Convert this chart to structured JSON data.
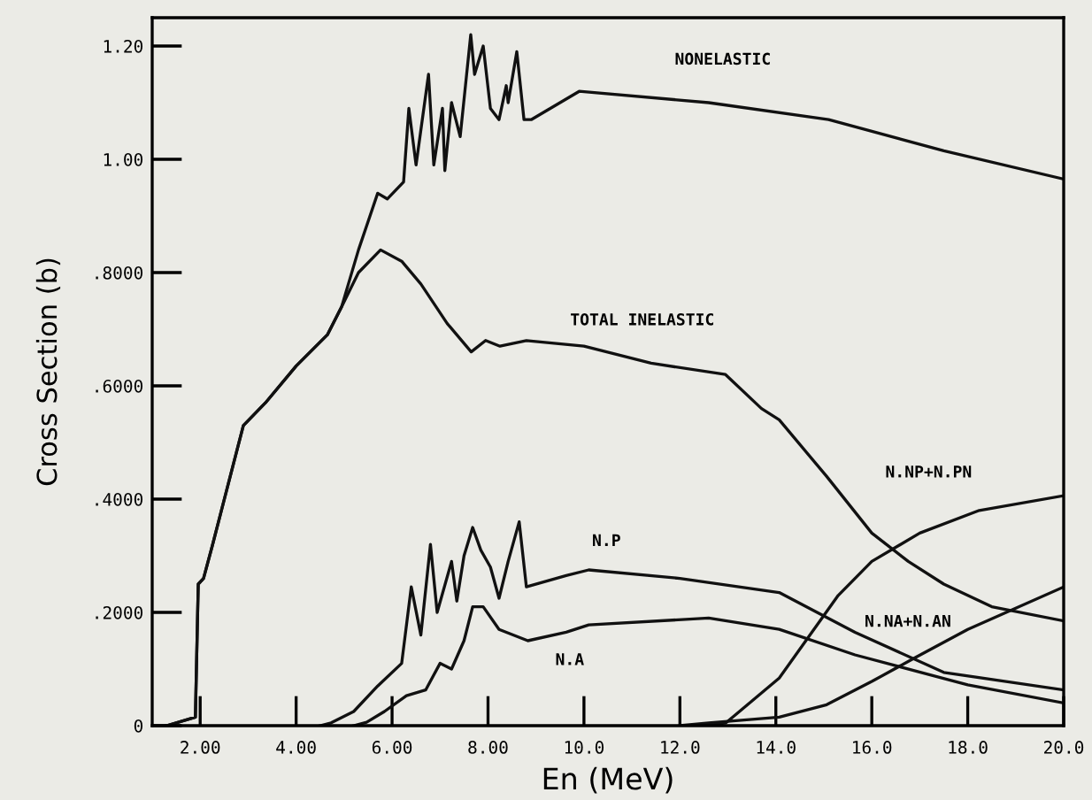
{
  "chart_data": {
    "type": "line",
    "xlabel": "En (MeV)",
    "ylabel": "Cross Section (b)",
    "xlim": [
      1,
      20
    ],
    "ylim": [
      0,
      1.25
    ],
    "xticks": [
      {
        "value": 2,
        "label": "2.00"
      },
      {
        "value": 4,
        "label": "4.00"
      },
      {
        "value": 6,
        "label": "6.00"
      },
      {
        "value": 8,
        "label": "8.00"
      },
      {
        "value": 10,
        "label": "10.0"
      },
      {
        "value": 12,
        "label": "12.0"
      },
      {
        "value": 14,
        "label": "14.0"
      },
      {
        "value": 16,
        "label": "16.0"
      },
      {
        "value": 18,
        "label": "18.0"
      },
      {
        "value": 20,
        "label": "20.0"
      }
    ],
    "yticks": [
      0,
      {
        "value": 0.2,
        "label": ".2000"
      },
      {
        "value": 0.4,
        "label": ".4000"
      },
      {
        "value": 0.6,
        "label": ".6000"
      },
      {
        "value": 0.8,
        "label": ".8000"
      },
      {
        "value": 1.0,
        "label": "1.00"
      },
      {
        "value": 1.2,
        "label": "1.20"
      }
    ],
    "grid": false,
    "legend": false,
    "line_style": "solid",
    "marker": "none",
    "series": [
      {
        "name": "NONELASTIC",
        "color": "#111111",
        "x": [
          1.3,
          1.7,
          1.9,
          1.96,
          2.07,
          2.26,
          2.9,
          3.36,
          4.0,
          4.65,
          4.95,
          5.3,
          5.7,
          5.9,
          6.24,
          6.35,
          6.5,
          6.76,
          6.87,
          7.05,
          7.1,
          7.24,
          7.42,
          7.64,
          7.72,
          7.9,
          8.05,
          8.23,
          8.38,
          8.42,
          8.6,
          8.75,
          8.9,
          9.9,
          12.6,
          15.1,
          17.5,
          20.0
        ],
        "values": [
          0,
          0.01,
          0.015,
          0.25,
          0.26,
          0.32,
          0.53,
          0.57,
          0.635,
          0.69,
          0.74,
          0.84,
          0.94,
          0.93,
          0.96,
          1.09,
          0.99,
          1.15,
          0.99,
          1.09,
          0.98,
          1.1,
          1.04,
          1.22,
          1.15,
          1.2,
          1.09,
          1.07,
          1.13,
          1.1,
          1.19,
          1.07,
          1.07,
          1.12,
          1.1,
          1.07,
          1.015,
          0.965
        ]
      },
      {
        "name": "TOTAL INELASTIC",
        "color": "#111111",
        "x": [
          1.3,
          1.7,
          1.9,
          1.96,
          2.07,
          2.26,
          2.9,
          3.36,
          4.0,
          4.65,
          4.95,
          5.3,
          5.76,
          6.2,
          6.6,
          7.15,
          7.65,
          7.95,
          8.25,
          8.8,
          10.0,
          11.4,
          12.95,
          13.7,
          14.07,
          15.06,
          16.0,
          16.76,
          17.5,
          18.5,
          20.0
        ],
        "values": [
          0,
          0.01,
          0.015,
          0.25,
          0.26,
          0.32,
          0.53,
          0.57,
          0.635,
          0.69,
          0.74,
          0.8,
          0.84,
          0.82,
          0.78,
          0.71,
          0.66,
          0.68,
          0.67,
          0.68,
          0.67,
          0.64,
          0.62,
          0.56,
          0.54,
          0.44,
          0.34,
          0.29,
          0.25,
          0.21,
          0.185
        ]
      },
      {
        "name": "N.P",
        "color": "#111111",
        "x": [
          4.5,
          4.73,
          5.2,
          5.7,
          6.2,
          6.4,
          6.6,
          6.8,
          6.94,
          7.24,
          7.35,
          7.5,
          7.68,
          7.85,
          8.05,
          8.23,
          8.42,
          8.65,
          8.8,
          9.63,
          10.1,
          12.0,
          14.07,
          15.65,
          17.5,
          20.0
        ],
        "values": [
          0,
          0.005,
          0.025,
          0.07,
          0.11,
          0.245,
          0.16,
          0.32,
          0.2,
          0.29,
          0.22,
          0.3,
          0.35,
          0.31,
          0.28,
          0.225,
          0.29,
          0.36,
          0.245,
          0.265,
          0.275,
          0.26,
          0.235,
          0.165,
          0.094,
          0.063
        ]
      },
      {
        "name": "N.A",
        "color": "#111111",
        "x": [
          5.2,
          5.47,
          5.84,
          6.3,
          6.7,
          7.0,
          7.24,
          7.5,
          7.68,
          7.9,
          8.23,
          8.83,
          9.63,
          10.1,
          12.6,
          14.07,
          15.65,
          18.0,
          20.0
        ],
        "values": [
          0,
          0.006,
          0.025,
          0.053,
          0.063,
          0.11,
          0.1,
          0.15,
          0.21,
          0.21,
          0.17,
          0.15,
          0.165,
          0.178,
          0.19,
          0.17,
          0.125,
          0.072,
          0.04
        ]
      },
      {
        "name": "N.NP+N.PN",
        "color": "#111111",
        "x": [
          12.5,
          12.96,
          14.07,
          15.3,
          16.0,
          17.0,
          18.24,
          20.0
        ],
        "values": [
          0,
          0.005,
          0.084,
          0.23,
          0.29,
          0.34,
          0.38,
          0.406
        ]
      },
      {
        "name": "N.NA+N.AN",
        "color": "#111111",
        "x": [
          12.0,
          12.6,
          14.07,
          15.06,
          16.0,
          16.9,
          18.0,
          20.0
        ],
        "values": [
          0,
          0.005,
          0.015,
          0.037,
          0.078,
          0.12,
          0.17,
          0.245
        ]
      }
    ]
  }
}
